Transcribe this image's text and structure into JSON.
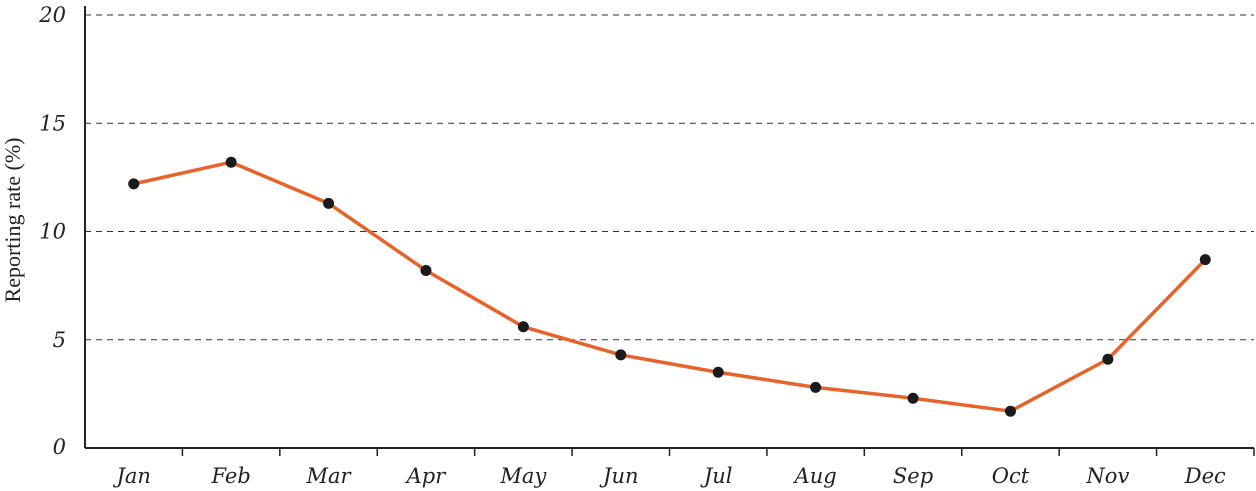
{
  "chart_data": {
    "type": "line",
    "title": "",
    "xlabel": "",
    "ylabel": "Reporting rate (%)",
    "categories": [
      "Jan",
      "Feb",
      "Mar",
      "Apr",
      "May",
      "Jun",
      "Jul",
      "Aug",
      "Sep",
      "Oct",
      "Nov",
      "Dec"
    ],
    "series": [
      {
        "values": [
          12.2,
          13.2,
          11.3,
          8.2,
          5.6,
          4.3,
          3.5,
          2.8,
          2.3,
          1.7,
          4.1,
          8.7
        ]
      }
    ],
    "yticks": [
      "0",
      "5",
      "10",
      "15",
      "20"
    ],
    "ylim": [
      0,
      20
    ],
    "grid": "horizontal dashed",
    "legend": "none",
    "colors": {
      "line": "#e8632a",
      "marker": "#1a1a1a",
      "axis": "#222222",
      "grid": "#333333"
    }
  }
}
